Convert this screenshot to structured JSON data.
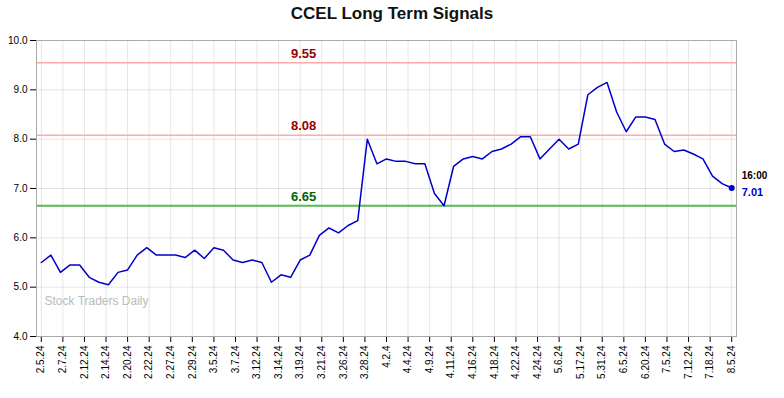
{
  "chart_data": {
    "type": "line",
    "title": "CCEL Long Term Signals",
    "x": [
      0,
      1,
      2,
      3,
      4,
      5,
      6,
      7,
      8,
      9,
      10,
      11,
      12,
      13,
      14,
      15,
      16,
      17,
      18,
      19,
      20,
      21,
      22,
      23,
      24,
      25,
      26,
      27,
      28,
      29,
      30,
      31,
      32,
      33,
      34,
      35,
      36,
      37,
      38,
      39,
      40,
      41,
      42,
      43,
      44,
      45,
      46,
      47,
      48,
      49,
      50,
      51,
      52,
      53,
      54,
      55,
      56,
      57,
      58,
      59,
      60,
      61,
      62,
      63,
      64,
      65,
      66,
      67,
      68,
      69,
      70,
      71,
      72
    ],
    "values": [
      5.5,
      5.65,
      5.3,
      5.45,
      5.45,
      5.2,
      5.1,
      5.05,
      5.3,
      5.35,
      5.65,
      5.8,
      5.65,
      5.65,
      5.65,
      5.6,
      5.75,
      5.58,
      5.8,
      5.75,
      5.55,
      5.5,
      5.55,
      5.5,
      5.1,
      5.25,
      5.2,
      5.55,
      5.65,
      6.05,
      6.2,
      6.1,
      6.25,
      6.35,
      8.0,
      7.5,
      7.6,
      7.55,
      7.55,
      7.5,
      7.5,
      6.9,
      6.65,
      7.45,
      7.6,
      7.65,
      7.6,
      7.75,
      7.8,
      7.9,
      8.05,
      8.05,
      7.6,
      7.8,
      8.0,
      7.8,
      7.9,
      8.9,
      9.05,
      9.15,
      8.55,
      8.15,
      8.45,
      8.45,
      8.4,
      7.9,
      7.75,
      7.78,
      7.7,
      7.6,
      7.25,
      7.1,
      7.01
    ],
    "color": "#0000cc",
    "xlim": [
      -0.5,
      72.5
    ],
    "xticks": [
      {
        "value": 0,
        "label": "2.5.24"
      },
      {
        "value": 2.25,
        "label": "2.7.24"
      },
      {
        "value": 4.5,
        "label": "2.12.24"
      },
      {
        "value": 6.75,
        "label": "2.14.24"
      },
      {
        "value": 9,
        "label": "2.20.24"
      },
      {
        "value": 11.25,
        "label": "2.22.24"
      },
      {
        "value": 13.5,
        "label": "2.27.24"
      },
      {
        "value": 15.75,
        "label": "2.29.24"
      },
      {
        "value": 18,
        "label": "3.5.24"
      },
      {
        "value": 20.25,
        "label": "3.7.24"
      },
      {
        "value": 22.5,
        "label": "3.12.24"
      },
      {
        "value": 24.75,
        "label": "3.14.24"
      },
      {
        "value": 27,
        "label": "3.19.24"
      },
      {
        "value": 29.25,
        "label": "3.21.24"
      },
      {
        "value": 31.5,
        "label": "3.26.24"
      },
      {
        "value": 33.75,
        "label": "3.28.24"
      },
      {
        "value": 36,
        "label": "4.2.4"
      },
      {
        "value": 38.25,
        "label": "4.4.24"
      },
      {
        "value": 40.5,
        "label": "4.9.24"
      },
      {
        "value": 42.75,
        "label": "4.11.24"
      },
      {
        "value": 45,
        "label": "4.16.24"
      },
      {
        "value": 47.25,
        "label": "4.18.24"
      },
      {
        "value": 49.5,
        "label": "4.22.24"
      },
      {
        "value": 51.75,
        "label": "4.24.24"
      },
      {
        "value": 54,
        "label": "5.6.24"
      },
      {
        "value": 56.25,
        "label": "5.17.24"
      },
      {
        "value": 58.5,
        "label": "5.31.24"
      },
      {
        "value": 60.75,
        "label": "6.5.24"
      },
      {
        "value": 63,
        "label": "6.20.24"
      },
      {
        "value": 65.25,
        "label": "7.5.24"
      },
      {
        "value": 67.5,
        "label": "7.12.24"
      },
      {
        "value": 69.75,
        "label": "7.18.24"
      },
      {
        "value": 72,
        "label": "8.5.24"
      }
    ],
    "ylim": [
      4.0,
      10.0
    ],
    "yticks": [
      4,
      5,
      6,
      7,
      8,
      9,
      10
    ],
    "grid": true,
    "marker": "last_point",
    "hlines": [
      {
        "value": 9.55,
        "label": "9.55",
        "color": "#ffaaaa",
        "label_color": "#990000"
      },
      {
        "value": 8.08,
        "label": "8.08",
        "color": "#ffaaaa",
        "label_color": "#990000"
      },
      {
        "value": 6.65,
        "label": "6.65",
        "color": "#55bb55",
        "label_color": "#006600"
      }
    ],
    "annotations": [
      {
        "text": "16:00",
        "color": "#000000"
      },
      {
        "text": "7.01",
        "color": "#0000cc"
      }
    ],
    "watermark": "Stock Traders Daily"
  }
}
